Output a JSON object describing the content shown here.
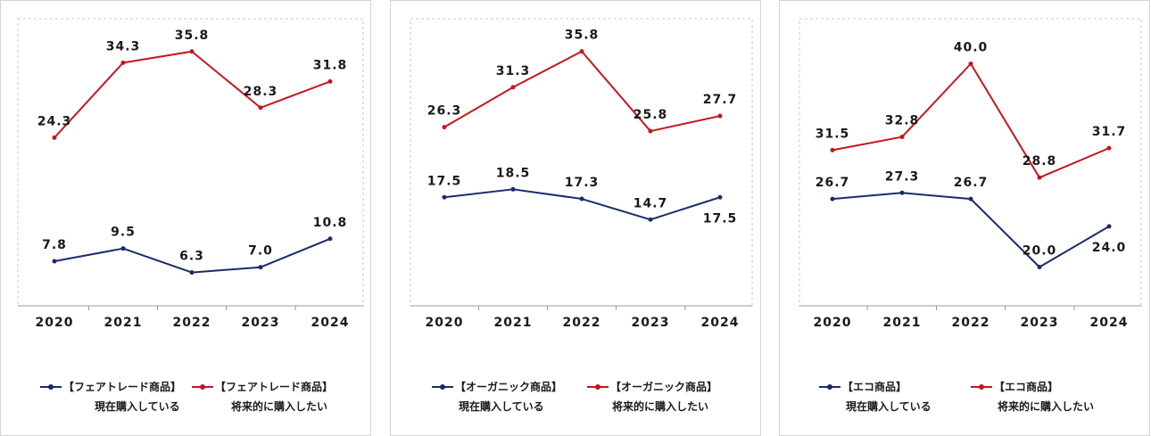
{
  "colors": {
    "current": "#1c2a6b",
    "future": "#c4161c"
  },
  "chart_data": [
    {
      "type": "line",
      "categories": [
        "2020",
        "2021",
        "2022",
        "2023",
        "2024"
      ],
      "ylim": [
        0,
        40
      ],
      "grid": false,
      "legend_position": "bottom",
      "series": [
        {
          "name_line1": "【フェアトレード商品】",
          "name_line2": "現在購入している",
          "color": "#1c2a6b",
          "values": [
            7.8,
            9.5,
            6.3,
            7.0,
            10.8
          ]
        },
        {
          "name_line1": "【フェアトレード商品】",
          "name_line2": "将来的に購入したい",
          "color": "#c4161c",
          "values": [
            24.3,
            34.3,
            35.8,
            28.3,
            31.8
          ]
        }
      ]
    },
    {
      "type": "line",
      "categories": [
        "2020",
        "2021",
        "2022",
        "2023",
        "2024"
      ],
      "ylim": [
        0,
        40
      ],
      "grid": false,
      "legend_position": "bottom",
      "series": [
        {
          "name_line1": "【オーガニック商品】",
          "name_line2": "現在購入している",
          "color": "#1c2a6b",
          "values": [
            17.5,
            18.5,
            17.3,
            14.7,
            17.5
          ]
        },
        {
          "name_line1": "【オーガニック商品】",
          "name_line2": "将来的に購入したい",
          "color": "#c4161c",
          "values": [
            26.3,
            31.3,
            35.8,
            25.8,
            27.7
          ]
        }
      ]
    },
    {
      "type": "line",
      "categories": [
        "2020",
        "2021",
        "2022",
        "2023",
        "2024"
      ],
      "ylim": [
        0,
        42
      ],
      "grid": false,
      "legend_position": "bottom",
      "series": [
        {
          "name_line1": "【エコ商品】",
          "name_line2": "現在購入している",
          "color": "#1c2a6b",
          "values": [
            26.7,
            27.3,
            26.7,
            20.0,
            24.0
          ]
        },
        {
          "name_line1": "【エコ商品】",
          "name_line2": "将来的に購入したい",
          "color": "#c4161c",
          "values": [
            31.5,
            32.8,
            40.0,
            28.8,
            31.7
          ]
        }
      ]
    }
  ]
}
